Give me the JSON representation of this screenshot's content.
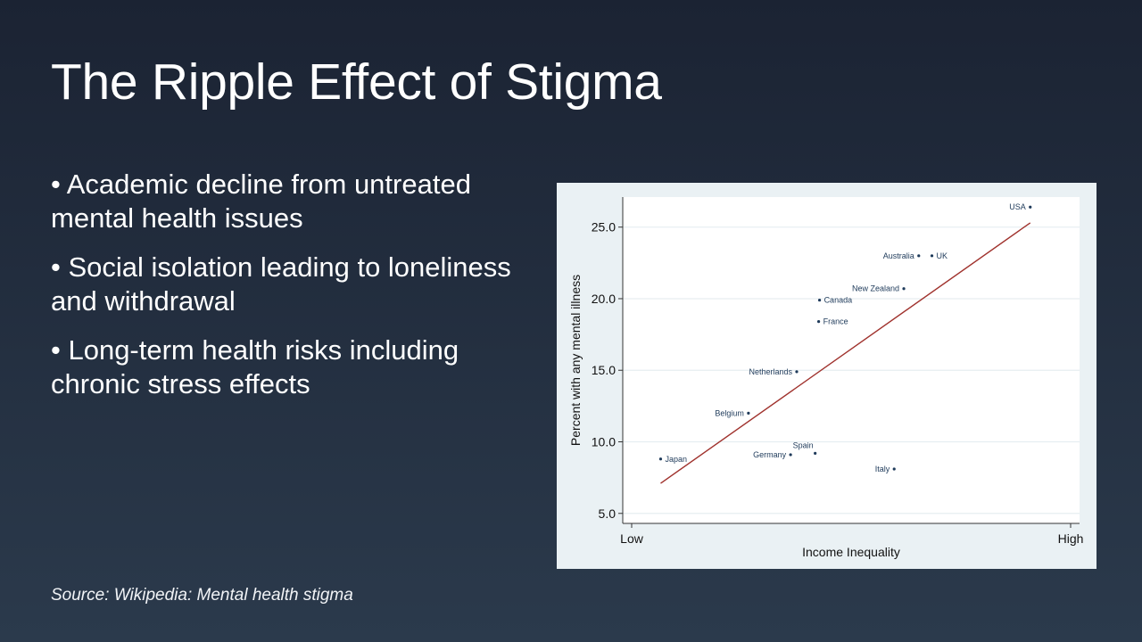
{
  "slide": {
    "title": "The Ripple Effect of Stigma",
    "bullets": [
      "• Academic decline from untreated mental health issues",
      "• Social isolation leading to loneliness and withdrawal",
      "• Long-term health risks including chronic stress effects"
    ],
    "source": "Source: Wikipedia: Mental health stigma"
  },
  "chart_data": {
    "type": "scatter",
    "title": "",
    "xlabel": "Income Inequality",
    "ylabel": "Percent with any mental illness",
    "x_tick_labels": [
      "Low",
      "High"
    ],
    "xlim": [
      0,
      1
    ],
    "y_ticks": [
      "5.0",
      "10.0",
      "15.0",
      "20.0",
      "25.0"
    ],
    "ylim": [
      4.3,
      27.1
    ],
    "grid": true,
    "legend": "none",
    "points": [
      {
        "label": "Japan",
        "x": 0.066,
        "y": 8.8,
        "label_side": "right"
      },
      {
        "label": "Belgium",
        "x": 0.266,
        "y": 12.0,
        "label_side": "left"
      },
      {
        "label": "Germany",
        "x": 0.362,
        "y": 9.1,
        "label_side": "left"
      },
      {
        "label": "Spain",
        "x": 0.418,
        "y": 9.2,
        "label_side": "above-left"
      },
      {
        "label": "Netherlands",
        "x": 0.376,
        "y": 14.9,
        "label_side": "left"
      },
      {
        "label": "France",
        "x": 0.426,
        "y": 18.4,
        "label_side": "right"
      },
      {
        "label": "Canada",
        "x": 0.428,
        "y": 19.9,
        "label_side": "right"
      },
      {
        "label": "Italy",
        "x": 0.598,
        "y": 8.1,
        "label_side": "left"
      },
      {
        "label": "New Zealand",
        "x": 0.62,
        "y": 20.7,
        "label_side": "left"
      },
      {
        "label": "Australia",
        "x": 0.654,
        "y": 23.0,
        "label_side": "left"
      },
      {
        "label": "UK",
        "x": 0.684,
        "y": 23.0,
        "label_side": "right"
      },
      {
        "label": "USA",
        "x": 0.908,
        "y": 26.4,
        "label_side": "left"
      }
    ],
    "fit_line": {
      "x": [
        0.066,
        0.908
      ],
      "y": [
        7.1,
        25.3
      ]
    },
    "colors": {
      "points": "#1e3a5a",
      "fit_line": "#a0322d",
      "plot_bg": "#ffffff",
      "frame_bg": "#eaf1f4",
      "grid": "#e6eef1"
    }
  }
}
